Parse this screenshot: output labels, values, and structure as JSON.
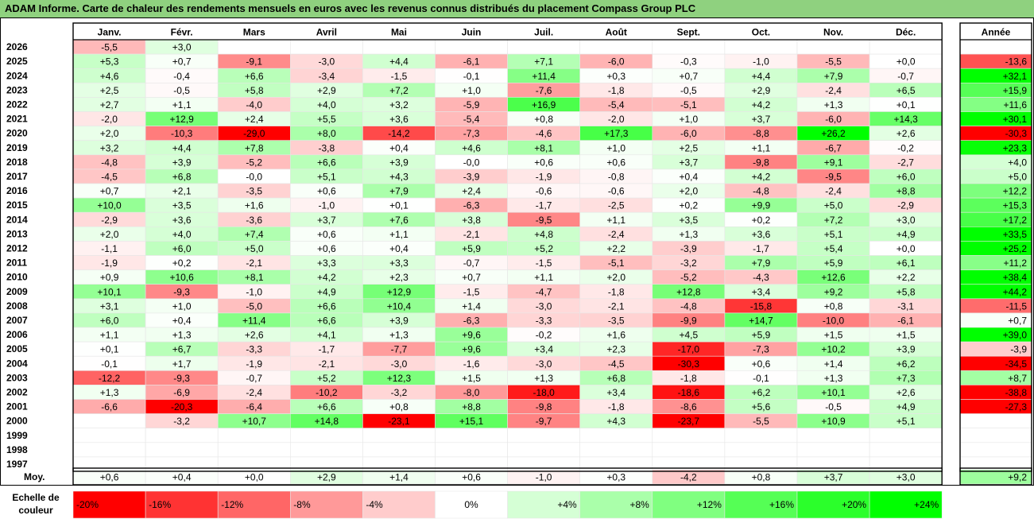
{
  "chart_data": {
    "type": "heatmap",
    "title": "ADAM Informe. Carte de chaleur des rendements mensuels en euros avec les revenus connus distribués du placement Compass Group PLC",
    "months": [
      "Janv.",
      "Févr.",
      "Mars",
      "Avril",
      "Mai",
      "Juin",
      "Juil.",
      "Août",
      "Sept.",
      "Oct.",
      "Nov.",
      "Déc."
    ],
    "year_header": "Année",
    "rows": [
      {
        "year": "2026",
        "values": [
          "-5,5",
          "+3,0",
          "",
          "",
          "",
          "",
          "",
          "",
          "",
          "",
          "",
          ""
        ],
        "annual": ""
      },
      {
        "year": "2025",
        "values": [
          "+5,3",
          "+0,7",
          "-9,1",
          "-3,0",
          "+4,4",
          "-6,1",
          "+7,1",
          "-6,0",
          "-0,3",
          "-1,0",
          "-5,5",
          "+0,0"
        ],
        "annual": "-13,6"
      },
      {
        "year": "2024",
        "values": [
          "+4,6",
          "-0,4",
          "+6,6",
          "-3,4",
          "-1,5",
          "-0,1",
          "+11,4",
          "+0,3",
          "+0,7",
          "+4,4",
          "+7,9",
          "-0,7"
        ],
        "annual": "+32,1"
      },
      {
        "year": "2023",
        "values": [
          "+2,5",
          "-0,5",
          "+5,8",
          "+2,9",
          "+7,2",
          "+1,0",
          "-7,6",
          "-1,8",
          "-0,5",
          "+2,9",
          "-2,4",
          "+6,5"
        ],
        "annual": "+15,9"
      },
      {
        "year": "2022",
        "values": [
          "+2,7",
          "+1,1",
          "-4,0",
          "+4,0",
          "+3,2",
          "-5,9",
          "+16,9",
          "-5,4",
          "-5,1",
          "+4,2",
          "+1,3",
          "+0,1"
        ],
        "annual": "+11,6"
      },
      {
        "year": "2021",
        "values": [
          "-2,0",
          "+12,9",
          "+2,4",
          "+5,5",
          "+3,6",
          "-5,4",
          "+0,8",
          "-2,0",
          "+1,0",
          "+3,7",
          "-6,0",
          "+14,3"
        ],
        "annual": "+30,1"
      },
      {
        "year": "2020",
        "values": [
          "+2,0",
          "-10,3",
          "-29,0",
          "+8,0",
          "-14,2",
          "-7,3",
          "-4,6",
          "+17,3",
          "-6,0",
          "-8,8",
          "+26,2",
          "+2,6"
        ],
        "annual": "-30,3"
      },
      {
        "year": "2019",
        "values": [
          "+3,2",
          "+4,4",
          "+7,8",
          "-3,8",
          "+0,4",
          "+4,6",
          "+8,1",
          "+1,0",
          "+2,5",
          "+1,1",
          "-6,7",
          "-0,2"
        ],
        "annual": "+23,3"
      },
      {
        "year": "2018",
        "values": [
          "-4,8",
          "+3,9",
          "-5,2",
          "+6,6",
          "+3,9",
          "-0,0",
          "+0,6",
          "+0,6",
          "+3,7",
          "-9,8",
          "+9,1",
          "-2,7"
        ],
        "annual": "+4,0"
      },
      {
        "year": "2017",
        "values": [
          "-4,5",
          "+6,8",
          "-0,0",
          "+5,1",
          "+4,3",
          "-3,9",
          "-1,9",
          "-0,8",
          "+0,4",
          "+4,2",
          "-9,5",
          "+6,0"
        ],
        "annual": "+5,0"
      },
      {
        "year": "2016",
        "values": [
          "+0,7",
          "+2,1",
          "-3,5",
          "+0,6",
          "+7,9",
          "+2,4",
          "-0,6",
          "-0,6",
          "+2,0",
          "-4,8",
          "-2,4",
          "+8,8"
        ],
        "annual": "+12,2"
      },
      {
        "year": "2015",
        "values": [
          "+10,0",
          "+3,5",
          "+1,6",
          "-1,0",
          "+0,1",
          "-6,3",
          "-1,7",
          "-2,5",
          "+0,2",
          "+9,9",
          "+5,0",
          "-2,9"
        ],
        "annual": "+15,3"
      },
      {
        "year": "2014",
        "values": [
          "-2,9",
          "+3,6",
          "-3,6",
          "+3,7",
          "+7,6",
          "+3,8",
          "-9,5",
          "+1,1",
          "+3,5",
          "+0,2",
          "+7,2",
          "+3,0"
        ],
        "annual": "+17,2"
      },
      {
        "year": "2013",
        "values": [
          "+2,0",
          "+4,0",
          "+7,4",
          "+0,6",
          "+1,1",
          "-2,1",
          "+4,8",
          "-2,4",
          "+1,3",
          "+3,6",
          "+5,1",
          "+4,9"
        ],
        "annual": "+33,5"
      },
      {
        "year": "2012",
        "values": [
          "-1,1",
          "+6,0",
          "+5,0",
          "+0,6",
          "+0,4",
          "+5,9",
          "+5,2",
          "+2,2",
          "-3,9",
          "-1,7",
          "+5,4",
          "+0,0"
        ],
        "annual": "+25,2"
      },
      {
        "year": "2011",
        "values": [
          "-1,9",
          "+0,2",
          "-2,1",
          "+3,3",
          "+3,3",
          "-0,7",
          "-1,5",
          "-5,1",
          "-3,2",
          "+7,9",
          "+5,9",
          "+6,1"
        ],
        "annual": "+11,2"
      },
      {
        "year": "2010",
        "values": [
          "+0,9",
          "+10,6",
          "+8,1",
          "+4,2",
          "+2,3",
          "+0,7",
          "+1,1",
          "+2,0",
          "-5,2",
          "-4,3",
          "+12,6",
          "+2,2"
        ],
        "annual": "+38,4"
      },
      {
        "year": "2009",
        "values": [
          "+10,1",
          "-9,3",
          "-1,0",
          "+4,9",
          "+12,9",
          "-1,5",
          "-4,7",
          "-1,8",
          "+12,8",
          "+3,4",
          "+9,2",
          "+5,8"
        ],
        "annual": "+44,2"
      },
      {
        "year": "2008",
        "values": [
          "+3,1",
          "+1,0",
          "-5,0",
          "+6,6",
          "+10,4",
          "+1,4",
          "-3,0",
          "-2,1",
          "-4,8",
          "-15,8",
          "+0,8",
          "-3,1"
        ],
        "annual": "-11,5"
      },
      {
        "year": "2007",
        "values": [
          "+6,0",
          "+0,4",
          "+11,4",
          "+6,6",
          "+3,9",
          "-6,3",
          "-3,3",
          "-3,5",
          "-9,9",
          "+14,7",
          "-10,0",
          "-6,1"
        ],
        "annual": "+0,7"
      },
      {
        "year": "2006",
        "values": [
          "+1,1",
          "+1,3",
          "+2,6",
          "+4,1",
          "+1,3",
          "+9,6",
          "-0,2",
          "+1,6",
          "+4,5",
          "+5,9",
          "+1,5",
          "+1,5"
        ],
        "annual": "+39,0"
      },
      {
        "year": "2005",
        "values": [
          "+0,1",
          "+6,7",
          "-3,3",
          "-1,7",
          "-7,7",
          "+9,6",
          "+3,4",
          "+2,3",
          "-17,0",
          "-7,3",
          "+10,2",
          "+3,9"
        ],
        "annual": "-3,9"
      },
      {
        "year": "2004",
        "values": [
          "-0,1",
          "+1,7",
          "-1,9",
          "-2,1",
          "-3,0",
          "-1,6",
          "-3,0",
          "-4,5",
          "-30,3",
          "+0,6",
          "+1,4",
          "+6,2"
        ],
        "annual": "-34,5"
      },
      {
        "year": "2003",
        "values": [
          "-12,2",
          "-9,3",
          "-0,7",
          "+5,2",
          "+12,3",
          "+1,5",
          "+1,3",
          "+6,8",
          "-1,8",
          "-0,1",
          "+1,3",
          "+7,3"
        ],
        "annual": "+8,7"
      },
      {
        "year": "2002",
        "values": [
          "+1,3",
          "-6,9",
          "-2,4",
          "-10,2",
          "-3,2",
          "-8,0",
          "-18,0",
          "+3,4",
          "-18,6",
          "+6,2",
          "+10,1",
          "+2,6"
        ],
        "annual": "-38,8"
      },
      {
        "year": "2001",
        "values": [
          "-6,6",
          "-20,3",
          "-6,4",
          "+6,6",
          "+0,8",
          "+8,8",
          "-9,8",
          "-1,8",
          "-8,6",
          "+5,6",
          "-0,5",
          "+4,9"
        ],
        "annual": "-27,3"
      },
      {
        "year": "2000",
        "values": [
          "",
          "-3,2",
          "+10,7",
          "+14,8",
          "-23,1",
          "+15,1",
          "-9,7",
          "+4,3",
          "-23,7",
          "-5,5",
          "+10,9",
          "+5,1"
        ],
        "annual": ""
      },
      {
        "year": "1999",
        "values": [
          "",
          "",
          "",
          "",
          "",
          "",
          "",
          "",
          "",
          "",
          "",
          ""
        ],
        "annual": ""
      },
      {
        "year": "1998",
        "values": [
          "",
          "",
          "",
          "",
          "",
          "",
          "",
          "",
          "",
          "",
          "",
          ""
        ],
        "annual": ""
      },
      {
        "year": "1997",
        "values": [
          "",
          "",
          "",
          "",
          "",
          "",
          "",
          "",
          "",
          "",
          "",
          ""
        ],
        "annual": ""
      }
    ],
    "avg_label": "Moy.",
    "avg_values": [
      "+0,6",
      "+0,4",
      "+0,0",
      "+2,9",
      "+1,4",
      "+0,6",
      "-1,0",
      "+0,3",
      "-4,2",
      "+0,8",
      "+3,7",
      "+3,0"
    ],
    "avg_annual": "+9,2",
    "scale_label_1": "Echelle de",
    "scale_label_2": "couleur",
    "scale": [
      {
        "label": "-20%",
        "value": -20
      },
      {
        "label": "-16%",
        "value": -16
      },
      {
        "label": "-12%",
        "value": -12
      },
      {
        "label": "-8%",
        "value": -8
      },
      {
        "label": "-4%",
        "value": -4
      },
      {
        "label": "0%",
        "value": 0
      },
      {
        "label": "+4%",
        "value": 4
      },
      {
        "label": "+8%",
        "value": 8
      },
      {
        "label": "+12%",
        "value": 12
      },
      {
        "label": "+16%",
        "value": 16
      },
      {
        "label": "+20%",
        "value": 20
      },
      {
        "label": "+24%",
        "value": 24
      }
    ],
    "colors": {
      "negative": "#ff0000",
      "positive": "#00ff00",
      "neutral": "#ffffff",
      "title_bg": "#8fd17f"
    }
  }
}
